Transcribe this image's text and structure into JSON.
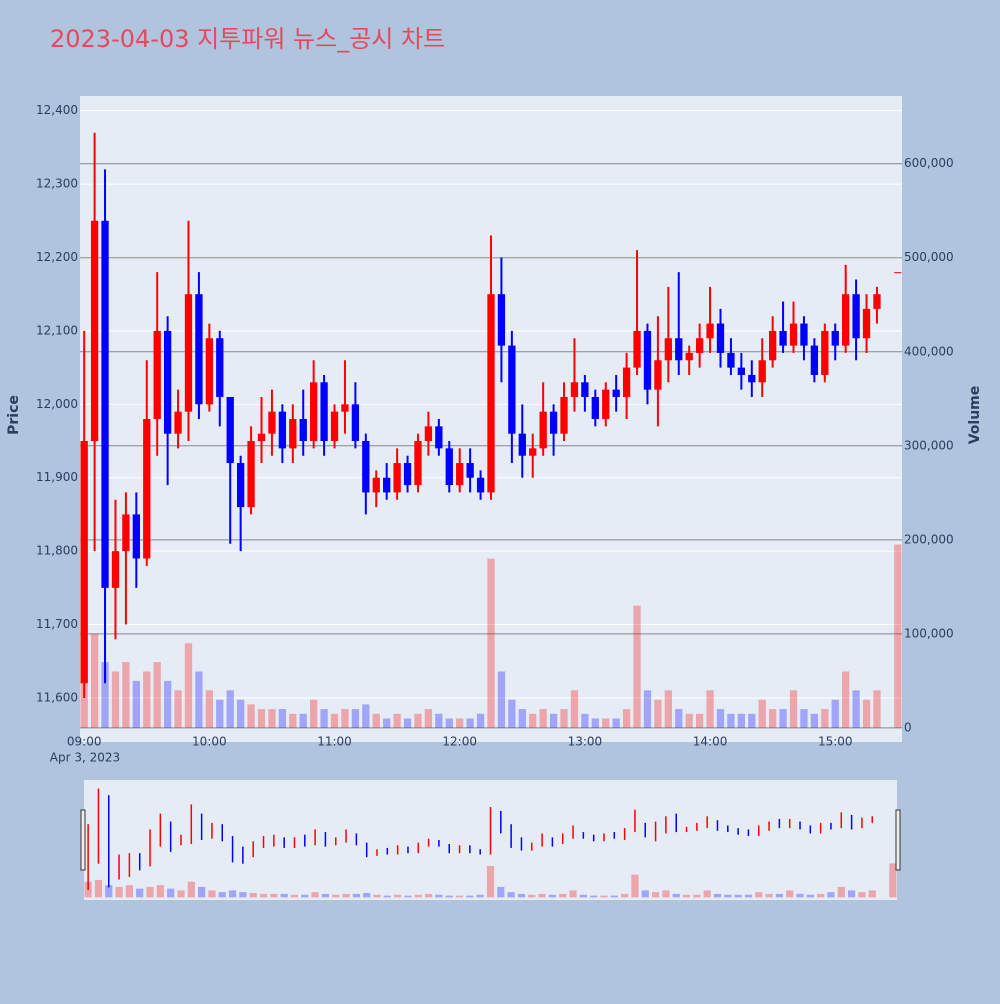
{
  "chart_data": {
    "type": "candlestick",
    "title": "2023-04-03 지투파워 뉴스_공시 차트",
    "y_label": "Price",
    "y2_label": "Volume",
    "x_date_label": "Apr 3, 2023",
    "increasing_color": "#ff0000",
    "decreasing_color": "#0000ff",
    "xlim": [
      "08:58",
      "15:32"
    ],
    "xticks": [
      "09:00",
      "10:00",
      "11:00",
      "12:00",
      "13:00",
      "14:00",
      "15:00"
    ],
    "ylim": [
      11540,
      12420
    ],
    "yticks": [
      {
        "value": 11600,
        "label": "11,600"
      },
      {
        "value": 11700,
        "label": "11,700"
      },
      {
        "value": 11800,
        "label": "11,800"
      },
      {
        "value": 11900,
        "label": "11,900"
      },
      {
        "value": 12000,
        "label": "12,000"
      },
      {
        "value": 12100,
        "label": "12,100"
      },
      {
        "value": 12200,
        "label": "12,200"
      },
      {
        "value": 12300,
        "label": "12,300"
      },
      {
        "value": 12400,
        "label": "12,400"
      }
    ],
    "y2lim": [
      -15000,
      672000
    ],
    "y2ticks": [
      0,
      {
        "value": 100000,
        "label": "100,000"
      },
      {
        "value": 200000,
        "label": "200,000"
      },
      {
        "value": 300000,
        "label": "300,000"
      },
      {
        "value": 400000,
        "label": "400,000"
      },
      {
        "value": 500000,
        "label": "500,000"
      },
      {
        "value": 600000,
        "label": "600,000"
      }
    ],
    "x": [
      "09:00",
      "09:05",
      "09:10",
      "09:15",
      "09:20",
      "09:25",
      "09:30",
      "09:35",
      "09:40",
      "09:45",
      "09:50",
      "09:55",
      "10:00",
      "10:05",
      "10:10",
      "10:15",
      "10:20",
      "10:25",
      "10:30",
      "10:35",
      "10:40",
      "10:45",
      "10:50",
      "10:55",
      "11:00",
      "11:05",
      "11:10",
      "11:15",
      "11:20",
      "11:25",
      "11:30",
      "11:35",
      "11:40",
      "11:45",
      "11:50",
      "11:55",
      "12:00",
      "12:05",
      "12:10",
      "12:15",
      "12:20",
      "12:25",
      "12:30",
      "12:35",
      "12:40",
      "12:45",
      "12:50",
      "12:55",
      "13:00",
      "13:05",
      "13:10",
      "13:15",
      "13:20",
      "13:25",
      "13:30",
      "13:35",
      "13:40",
      "13:45",
      "13:50",
      "13:55",
      "14:00",
      "14:05",
      "14:10",
      "14:15",
      "14:20",
      "14:25",
      "14:30",
      "14:35",
      "14:40",
      "14:45",
      "14:50",
      "14:55",
      "15:00",
      "15:05",
      "15:10",
      "15:15",
      "15:20",
      "15:30"
    ],
    "open": [
      11620,
      11950,
      12250,
      11750,
      11800,
      11850,
      11790,
      11980,
      12100,
      11960,
      11990,
      12150,
      12000,
      12090,
      12010,
      11920,
      11860,
      11950,
      11960,
      11990,
      11940,
      11980,
      11950,
      12030,
      11950,
      11990,
      12000,
      11950,
      11880,
      11900,
      11880,
      11920,
      11890,
      11950,
      11970,
      11940,
      11890,
      11920,
      11900,
      11880,
      12150,
      12080,
      11960,
      11930,
      11940,
      11990,
      11960,
      12010,
      12030,
      12010,
      11980,
      12020,
      12010,
      12050,
      12100,
      12020,
      12060,
      12090,
      12060,
      12070,
      12090,
      12110,
      12070,
      12050,
      12040,
      12030,
      12060,
      12100,
      12080,
      12110,
      12080,
      12040,
      12100,
      12080,
      12150,
      12090,
      12130,
      12180
    ],
    "high": [
      12100,
      12370,
      12320,
      11870,
      11880,
      11880,
      12060,
      12180,
      12120,
      12020,
      12250,
      12180,
      12110,
      12100,
      12010,
      11930,
      11970,
      12010,
      12020,
      12000,
      12000,
      12020,
      12060,
      12040,
      12000,
      12060,
      12030,
      11960,
      11910,
      11920,
      11940,
      11930,
      11960,
      11990,
      11980,
      11950,
      11940,
      11940,
      11910,
      12230,
      12200,
      12100,
      12000,
      11960,
      12030,
      12000,
      12030,
      12090,
      12040,
      12020,
      12030,
      12040,
      12070,
      12210,
      12110,
      12120,
      12160,
      12180,
      12080,
      12110,
      12160,
      12130,
      12090,
      12070,
      12060,
      12090,
      12120,
      12140,
      12140,
      12120,
      12090,
      12110,
      12110,
      12190,
      12170,
      12150,
      12160,
      12180
    ],
    "low": [
      11600,
      11800,
      11620,
      11680,
      11700,
      11750,
      11780,
      11930,
      11890,
      11940,
      11950,
      11980,
      11990,
      11970,
      11810,
      11800,
      11850,
      11920,
      11930,
      11920,
      11920,
      11930,
      11940,
      11930,
      11940,
      11960,
      11940,
      11850,
      11860,
      11870,
      11870,
      11880,
      11880,
      11930,
      11930,
      11880,
      11880,
      11880,
      11870,
      11870,
      12030,
      11920,
      11900,
      11900,
      11930,
      11930,
      11950,
      11990,
      11990,
      11970,
      11970,
      11990,
      11980,
      12040,
      12000,
      11970,
      12030,
      12040,
      12040,
      12050,
      12070,
      12050,
      12040,
      12020,
      12010,
      12010,
      12050,
      12070,
      12070,
      12060,
      12030,
      12030,
      12060,
      12070,
      12060,
      12070,
      12110,
      12180
    ],
    "close": [
      11950,
      12250,
      11750,
      11800,
      11850,
      11790,
      11980,
      12100,
      11960,
      11990,
      12150,
      12000,
      12090,
      12010,
      11920,
      11860,
      11950,
      11960,
      11990,
      11940,
      11980,
      11950,
      12030,
      11950,
      11990,
      12000,
      11950,
      11880,
      11900,
      11880,
      11920,
      11890,
      11950,
      11970,
      11940,
      11890,
      11920,
      11900,
      11880,
      12150,
      12080,
      11960,
      11930,
      11940,
      11990,
      11960,
      12010,
      12030,
      12010,
      11980,
      12020,
      12010,
      12050,
      12100,
      12020,
      12060,
      12090,
      12060,
      12070,
      12090,
      12110,
      12070,
      12050,
      12040,
      12030,
      12060,
      12100,
      12080,
      12110,
      12080,
      12040,
      12100,
      12080,
      12150,
      12090,
      12130,
      12150,
      12180
    ],
    "volume": [
      90000,
      100000,
      70000,
      60000,
      70000,
      50000,
      60000,
      70000,
      50000,
      40000,
      90000,
      60000,
      40000,
      30000,
      40000,
      30000,
      25000,
      20000,
      20000,
      20000,
      15000,
      15000,
      30000,
      20000,
      15000,
      20000,
      20000,
      25000,
      15000,
      10000,
      15000,
      10000,
      15000,
      20000,
      15000,
      10000,
      10000,
      10000,
      15000,
      180000,
      60000,
      30000,
      20000,
      15000,
      20000,
      15000,
      20000,
      40000,
      15000,
      10000,
      10000,
      10000,
      20000,
      130000,
      40000,
      30000,
      40000,
      20000,
      15000,
      15000,
      40000,
      20000,
      15000,
      15000,
      15000,
      30000,
      20000,
      20000,
      40000,
      20000,
      15000,
      20000,
      30000,
      60000,
      40000,
      30000,
      40000,
      195000
    ]
  }
}
